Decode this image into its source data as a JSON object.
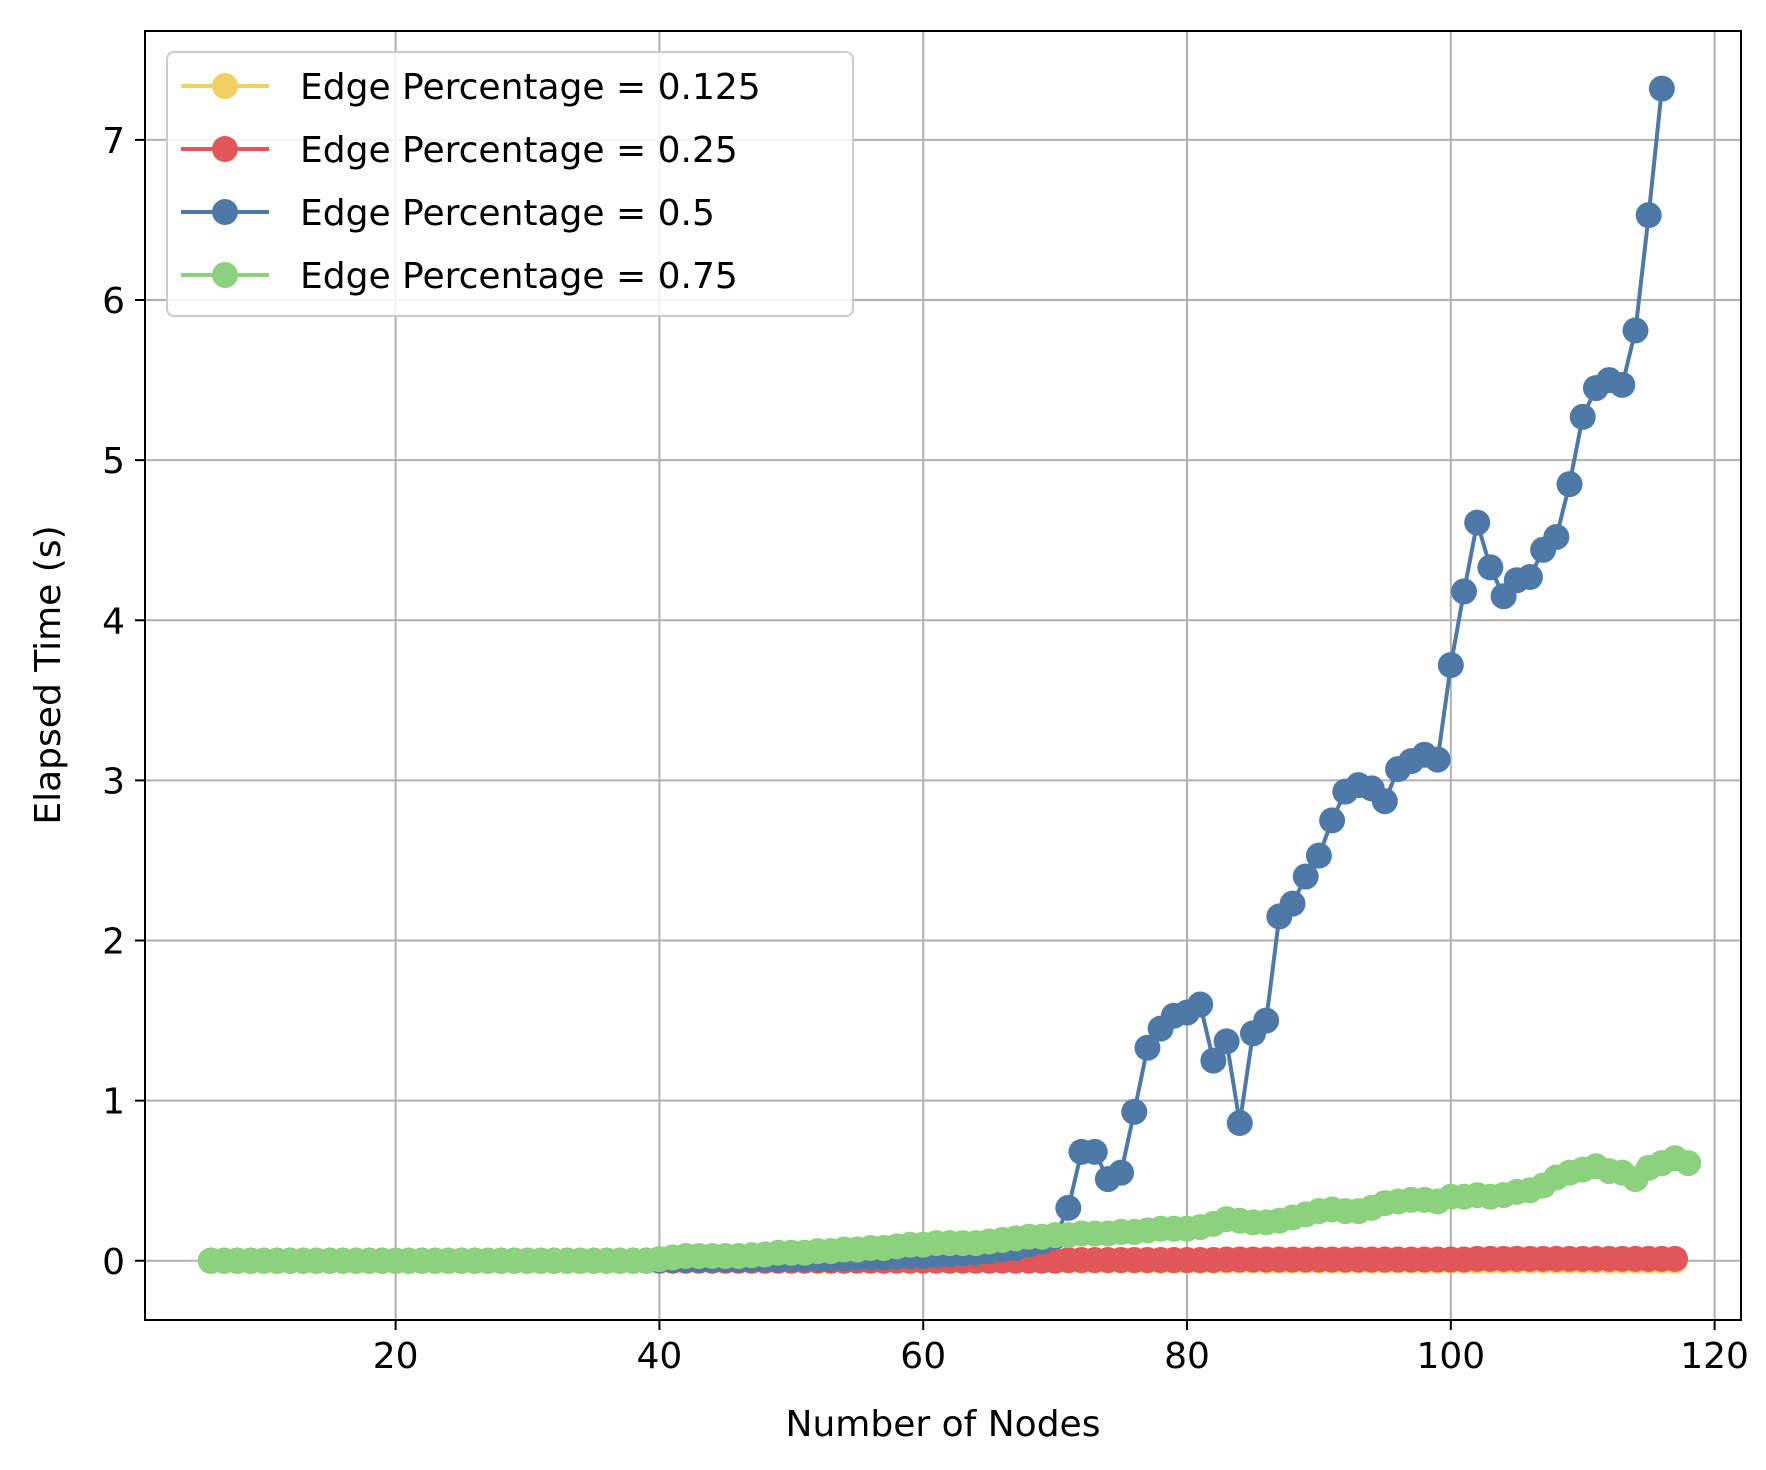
{
  "chart_data": {
    "type": "line",
    "title": "",
    "xlabel": "Number of Nodes",
    "ylabel": "Elapsed Time (s)",
    "xlim": [
      1,
      122
    ],
    "ylim": [
      -0.37,
      7.68
    ],
    "xticks": [
      20,
      40,
      60,
      80,
      100,
      120
    ],
    "yticks": [
      0,
      1,
      2,
      3,
      4,
      5,
      6,
      7
    ],
    "xtick_labels": [
      "20",
      "40",
      "60",
      "80",
      "100",
      "120"
    ],
    "ytick_labels": [
      "0",
      "1",
      "2",
      "3",
      "4",
      "5",
      "6",
      "7"
    ],
    "grid": true,
    "legend_position": "top-left",
    "x_start": 6,
    "x_end": 117,
    "series": [
      {
        "name": "Edge Percentage = 0.125",
        "color": "#f2cf63",
        "values": [
          0,
          0,
          0,
          0,
          0,
          0,
          0,
          0,
          0,
          0,
          0,
          0,
          0,
          0,
          0,
          0,
          0,
          0,
          0,
          0,
          0,
          0,
          0,
          0,
          0,
          0,
          0,
          0,
          0,
          0,
          0,
          0,
          0,
          0,
          0,
          0,
          0,
          0,
          0,
          0,
          0,
          0,
          0,
          0,
          0,
          0,
          0,
          0,
          0,
          0,
          0,
          0,
          0,
          0,
          0,
          0,
          0,
          0,
          0,
          0,
          0,
          0,
          0,
          0,
          0,
          0,
          0,
          0,
          0,
          0,
          0,
          0,
          0,
          0,
          0,
          0,
          0,
          0,
          0,
          0,
          0,
          0,
          0,
          0,
          0,
          0,
          0,
          0,
          0,
          0,
          0,
          0,
          0,
          0,
          0,
          0,
          0,
          0,
          0,
          0,
          0,
          0,
          0,
          0,
          0,
          0,
          0,
          0,
          0,
          0,
          0,
          0
        ]
      },
      {
        "name": "Edge Percentage = 0.25",
        "color": "#e15759",
        "values": [
          0,
          0,
          0,
          0,
          0,
          0,
          0,
          0,
          0,
          0,
          0,
          0,
          0,
          0,
          0,
          0,
          0,
          0,
          0,
          0,
          0,
          0,
          0,
          0,
          0,
          0,
          0,
          0,
          0,
          0,
          0,
          0,
          0,
          0,
          0,
          0,
          0,
          0,
          0,
          0,
          0,
          0,
          0,
          0,
          0,
          0,
          0,
          0,
          0,
          0,
          0,
          0,
          0,
          0,
          0,
          0,
          0,
          0,
          0,
          0,
          0,
          0,
          0,
          0,
          0,
          0.005,
          0.005,
          0.005,
          0.005,
          0.005,
          0.005,
          0.005,
          0.005,
          0.005,
          0.005,
          0.005,
          0.005,
          0.008,
          0.008,
          0.008,
          0.008,
          0.008,
          0.008,
          0.008,
          0.008,
          0.008,
          0.008,
          0.008,
          0.008,
          0.008,
          0.008,
          0.008,
          0.008,
          0.008,
          0.008,
          0.008,
          0.012,
          0.012,
          0.012,
          0.012,
          0.012,
          0.012,
          0.012,
          0.012,
          0.012,
          0.012,
          0.012,
          0.012,
          0.012,
          0.012,
          0.012,
          0.012
        ]
      },
      {
        "name": "Edge Percentage = 0.5",
        "color": "#4e79a7",
        "values": [
          0,
          0,
          0,
          0,
          0,
          0,
          0,
          0,
          0,
          0,
          0,
          0,
          0,
          0,
          0,
          0,
          0,
          0,
          0,
          0,
          0,
          0,
          0,
          0,
          0,
          0,
          0,
          0,
          0,
          0,
          0,
          0,
          0,
          0,
          0.003,
          0.005,
          0.005,
          0.005,
          0.005,
          0.006,
          0.006,
          0.006,
          0.008,
          0.008,
          0.01,
          0.01,
          0.012,
          0.012,
          0.015,
          0.018,
          0.02,
          0.022,
          0.025,
          0.028,
          0.03,
          0.035,
          0.04,
          0.045,
          0.05,
          0.06,
          0.07,
          0.08,
          0.1,
          0.12,
          0.15,
          0.33,
          0.68,
          0.68,
          0.51,
          0.55,
          0.93,
          1.33,
          1.45,
          1.53,
          1.55,
          1.6,
          1.25,
          1.37,
          0.86,
          1.42,
          1.5,
          2.15,
          2.23,
          2.4,
          2.53,
          2.75,
          2.93,
          2.97,
          2.95,
          2.87,
          3.07,
          3.12,
          3.16,
          3.13,
          3.72,
          4.18,
          4.61,
          4.33,
          4.15,
          4.25,
          4.27,
          4.44,
          4.52,
          4.85,
          5.27,
          5.45,
          5.5,
          5.47,
          5.81,
          6.53,
          7.32
        ]
      },
      {
        "name": "Edge Percentage = 0.75",
        "color": "#8cd17d",
        "values": [
          0,
          0,
          0,
          0,
          0,
          0,
          0,
          0,
          0,
          0,
          0,
          0,
          0,
          0,
          0,
          0,
          0,
          0,
          0,
          0,
          0,
          0,
          0,
          0,
          0,
          0,
          0,
          0,
          0,
          0,
          0,
          0,
          0,
          0,
          0.01,
          0.02,
          0.03,
          0.03,
          0.03,
          0.03,
          0.03,
          0.035,
          0.04,
          0.05,
          0.05,
          0.05,
          0.06,
          0.06,
          0.07,
          0.07,
          0.08,
          0.08,
          0.09,
          0.1,
          0.1,
          0.11,
          0.11,
          0.11,
          0.11,
          0.12,
          0.13,
          0.14,
          0.15,
          0.15,
          0.16,
          0.16,
          0.17,
          0.17,
          0.17,
          0.18,
          0.18,
          0.19,
          0.2,
          0.2,
          0.2,
          0.21,
          0.23,
          0.26,
          0.25,
          0.24,
          0.24,
          0.25,
          0.27,
          0.29,
          0.31,
          0.32,
          0.31,
          0.31,
          0.33,
          0.36,
          0.37,
          0.38,
          0.38,
          0.37,
          0.4,
          0.4,
          0.41,
          0.4,
          0.41,
          0.43,
          0.44,
          0.47,
          0.52,
          0.55,
          0.57,
          0.59,
          0.56,
          0.55,
          0.51,
          0.58,
          0.61,
          0.64,
          0.61
        ]
      }
    ]
  }
}
